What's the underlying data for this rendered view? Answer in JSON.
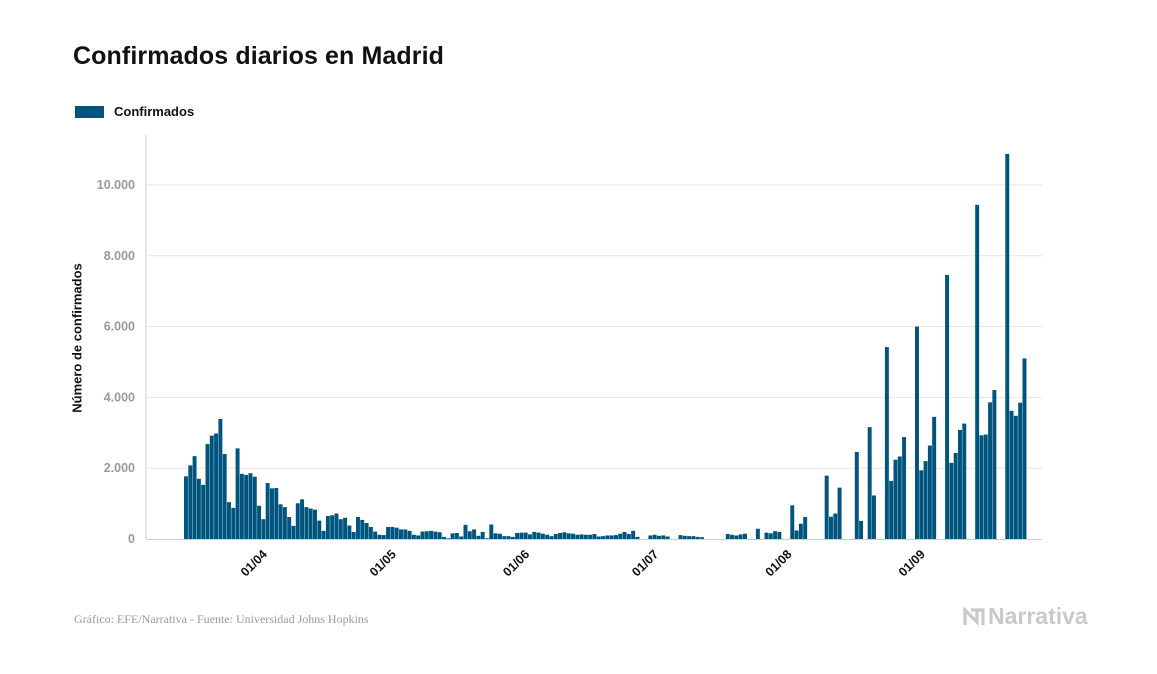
{
  "title": "Confirmados diarios en Madrid",
  "source": "Gráfico: EFE/Narrativa - Fuente: Universidad Johns Hopkins",
  "brand": {
    "name": "Narrativa",
    "icon": "narrativa-n-logo-icon"
  },
  "colors": {
    "bar": "#00547d",
    "grid": "#e6e6e6",
    "axis": "#cfcfcf",
    "brand": "#c9c9c9"
  },
  "chart_data": {
    "type": "bar",
    "title": "Confirmados diarios en Madrid",
    "ylabel": "Número de confirmados",
    "xlabel": "",
    "ylim": [
      0,
      11000
    ],
    "grid": true,
    "legend_position": "top-left",
    "yticks": [
      0,
      2000,
      4000,
      6000,
      8000,
      10000
    ],
    "ytick_labels": [
      "0",
      "2.000",
      "4.000",
      "6.000",
      "8.000",
      "10.000"
    ],
    "start_date": "2020-03-13",
    "end_date": "2020-09-18",
    "xticks": [
      {
        "label": "01/04",
        "date": "2020-04-01"
      },
      {
        "label": "01/05",
        "date": "2020-05-01"
      },
      {
        "label": "01/06",
        "date": "2020-06-01"
      },
      {
        "label": "01/07",
        "date": "2020-07-01"
      },
      {
        "label": "01/08",
        "date": "2020-08-01"
      },
      {
        "label": "01/09",
        "date": "2020-09-01"
      }
    ],
    "series": [
      {
        "name": "Confirmados",
        "values": [
          1770,
          2080,
          2340,
          1700,
          1530,
          2680,
          2920,
          2980,
          3390,
          2400,
          1040,
          880,
          2560,
          1840,
          1810,
          1860,
          1760,
          940,
          560,
          1580,
          1430,
          1440,
          980,
          900,
          620,
          370,
          1010,
          1120,
          900,
          860,
          830,
          520,
          230,
          650,
          670,
          720,
          560,
          600,
          380,
          200,
          620,
          540,
          450,
          340,
          210,
          120,
          110,
          340,
          340,
          320,
          270,
          270,
          230,
          120,
          100,
          210,
          220,
          230,
          210,
          190,
          60,
          20,
          160,
          170,
          70,
          400,
          220,
          270,
          90,
          200,
          20,
          410,
          160,
          150,
          80,
          80,
          60,
          170,
          180,
          180,
          130,
          200,
          180,
          150,
          120,
          80,
          140,
          170,
          190,
          160,
          150,
          120,
          130,
          120,
          120,
          140,
          70,
          80,
          100,
          100,
          110,
          150,
          200,
          140,
          230,
          60,
          0,
          0,
          100,
          120,
          90,
          100,
          70,
          0,
          0,
          110,
          90,
          80,
          80,
          60,
          50,
          0,
          0,
          0,
          0,
          0,
          140,
          120,
          100,
          130,
          150,
          0,
          0,
          290,
          0,
          180,
          160,
          220,
          200,
          0,
          0,
          950,
          240,
          430,
          620,
          0,
          0,
          0,
          0,
          1790,
          630,
          720,
          1450,
          0,
          0,
          0,
          2460,
          510,
          0,
          3160,
          1230,
          0,
          0,
          5420,
          1640,
          2240,
          2330,
          2880,
          0,
          0,
          6000,
          1940,
          2200,
          2640,
          3450,
          0,
          0,
          7460,
          2150,
          2430,
          3080,
          3260,
          0,
          0,
          9440,
          2930,
          2950,
          3860,
          4210,
          0,
          0,
          10880,
          3620,
          3480,
          3850,
          5100
        ]
      }
    ]
  }
}
